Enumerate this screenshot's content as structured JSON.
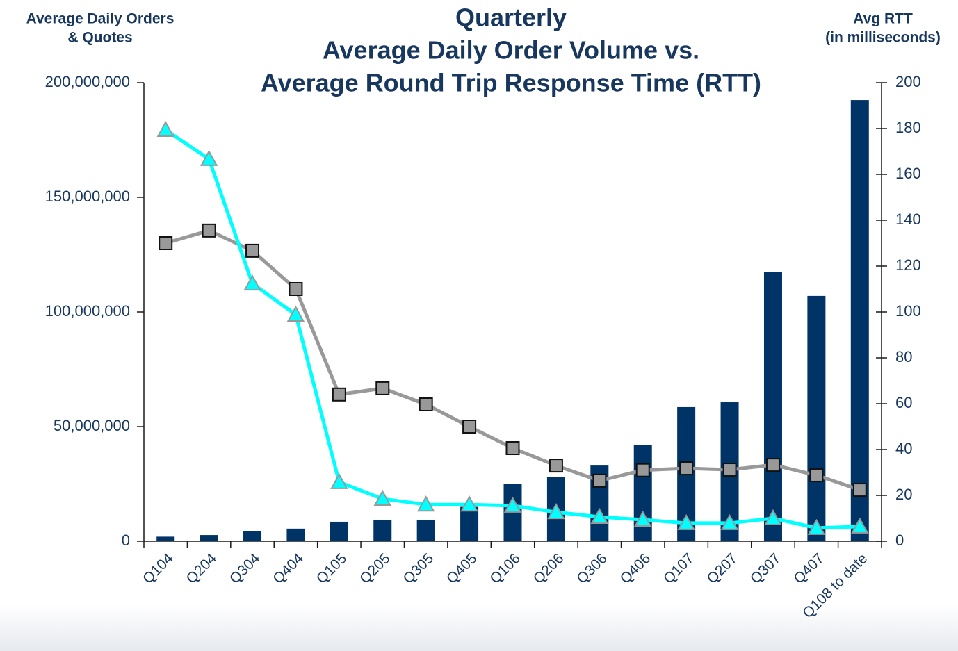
{
  "chart_data": {
    "type": "bar_line",
    "title": [
      "Quarterly",
      "Average Daily Order Volume vs.",
      "Average Round Trip Response Time (RTT)"
    ],
    "ylabel": [
      "Average Daily Orders",
      "& Quotes"
    ],
    "y2label": [
      "Avg RTT",
      "(in milliseconds)"
    ],
    "categories": [
      "Q104",
      "Q204",
      "Q304",
      "Q404",
      "Q105",
      "Q205",
      "Q305",
      "Q405",
      "Q106",
      "Q206",
      "Q306",
      "Q406",
      "Q107",
      "Q207",
      "Q307",
      "Q407",
      "Q108 to date"
    ],
    "series": [
      {
        "type": "bar",
        "color": "#003366",
        "values": [
          2000000,
          2700000,
          4500000,
          5500000,
          8500000,
          9400000,
          9400000,
          15000000,
          25000000,
          28000000,
          33000000,
          42000000,
          58500000,
          60600000,
          117500000,
          107000000,
          192400000
        ]
      },
      {
        "type": "line",
        "axis": "y2",
        "marker": "square",
        "color": "#999999",
        "values": [
          130,
          135.5,
          126.7,
          110,
          64,
          66.7,
          59.7,
          50,
          40.6,
          33,
          26.4,
          31,
          31.8,
          31.2,
          33.3,
          28.8,
          22.4
        ]
      },
      {
        "type": "line",
        "axis": "y2",
        "marker": "triangle",
        "color": "#00ffff",
        "values": [
          179.4,
          166.7,
          112.4,
          98.8,
          25.8,
          18.5,
          16,
          16,
          15.5,
          12.7,
          10.6,
          9.4,
          7.9,
          7.9,
          10,
          5.8,
          6.4
        ]
      }
    ],
    "ylim": [
      0,
      200000000
    ],
    "yticks": [
      0,
      {
        "value": 50000000,
        "label": "50,000,000"
      },
      {
        "value": 100000000,
        "label": "100,000,000"
      },
      {
        "value": 150000000,
        "label": "150,000,000"
      },
      {
        "value": 200000000,
        "label": "200,000,000"
      }
    ],
    "y2lim": [
      0,
      200
    ],
    "y2ticks": [
      0,
      20,
      40,
      60,
      80,
      100,
      120,
      140,
      160,
      180,
      200
    ]
  }
}
